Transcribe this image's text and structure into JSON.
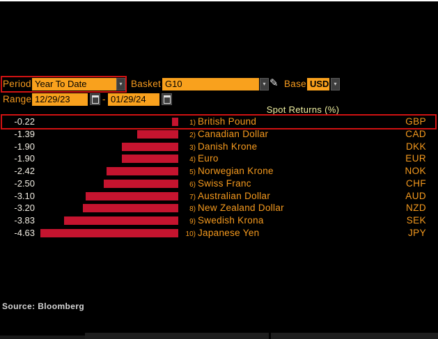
{
  "controls": {
    "period": {
      "label": "Period",
      "value": "Year To Date"
    },
    "basket": {
      "label": "Basket",
      "value": "G10"
    },
    "base": {
      "label": "Base",
      "value": "USD"
    },
    "range": {
      "label": "Range",
      "start_date": "12/29/23",
      "separator": "-",
      "end_date": "01/29/24"
    }
  },
  "icons": {
    "dropdown_arrow": "▾",
    "pencil": "✎",
    "calendar": "calendar-grid"
  },
  "chart_data": {
    "type": "bar",
    "orientation": "horizontal",
    "title": "Spot Returns (%)",
    "xlim": [
      -5,
      0
    ],
    "grid": false,
    "bar_color": "#c5142f",
    "highlight_border_color": "#d11212",
    "categories": [
      "British Pound",
      "Canadian Dollar",
      "Danish Krone",
      "Euro",
      "Norwegian Krone",
      "Swiss Franc",
      "Australian Dollar",
      "New Zealand Dollar",
      "Swedish Krona",
      "Japanese Yen"
    ],
    "values": [
      -0.22,
      -1.39,
      -1.9,
      -1.9,
      -2.42,
      -2.5,
      -3.1,
      -3.2,
      -3.83,
      -4.63
    ],
    "rows": [
      {
        "rank": "1)",
        "value_label": "-0.22",
        "value": -0.22,
        "name": "British Pound",
        "code": "GBP",
        "highlighted": true
      },
      {
        "rank": "2)",
        "value_label": "-1.39",
        "value": -1.39,
        "name": "Canadian Dollar",
        "code": "CAD",
        "highlighted": false
      },
      {
        "rank": "3)",
        "value_label": "-1.90",
        "value": -1.9,
        "name": "Danish Krone",
        "code": "DKK",
        "highlighted": false
      },
      {
        "rank": "4)",
        "value_label": "-1.90",
        "value": -1.9,
        "name": "Euro",
        "code": "EUR",
        "highlighted": false
      },
      {
        "rank": "5)",
        "value_label": "-2.42",
        "value": -2.42,
        "name": "Norwegian Krone",
        "code": "NOK",
        "highlighted": false
      },
      {
        "rank": "6)",
        "value_label": "-2.50",
        "value": -2.5,
        "name": "Swiss Franc",
        "code": "CHF",
        "highlighted": false
      },
      {
        "rank": "7)",
        "value_label": "-3.10",
        "value": -3.1,
        "name": "Australian Dollar",
        "code": "AUD",
        "highlighted": false
      },
      {
        "rank": "8)",
        "value_label": "-3.20",
        "value": -3.2,
        "name": "New Zealand Dollar",
        "code": "NZD",
        "highlighted": false
      },
      {
        "rank": "9)",
        "value_label": "-3.83",
        "value": -3.83,
        "name": "Swedish Krona",
        "code": "SEK",
        "highlighted": false
      },
      {
        "rank": "10)",
        "value_label": "-4.63",
        "value": -4.63,
        "name": "Japanese Yen",
        "code": "JPY",
        "highlighted": false
      }
    ]
  },
  "footer": {
    "source": "Source: Bloomberg"
  },
  "colors": {
    "background": "#000000",
    "accent_orange": "#f9a11d",
    "label_orange": "#f79b1e",
    "bar_red": "#c5142f",
    "highlight_red": "#d11212",
    "title_yellow": "#f1f1a2",
    "value_text": "#f0ece2",
    "source_text": "#d6d6d6"
  }
}
